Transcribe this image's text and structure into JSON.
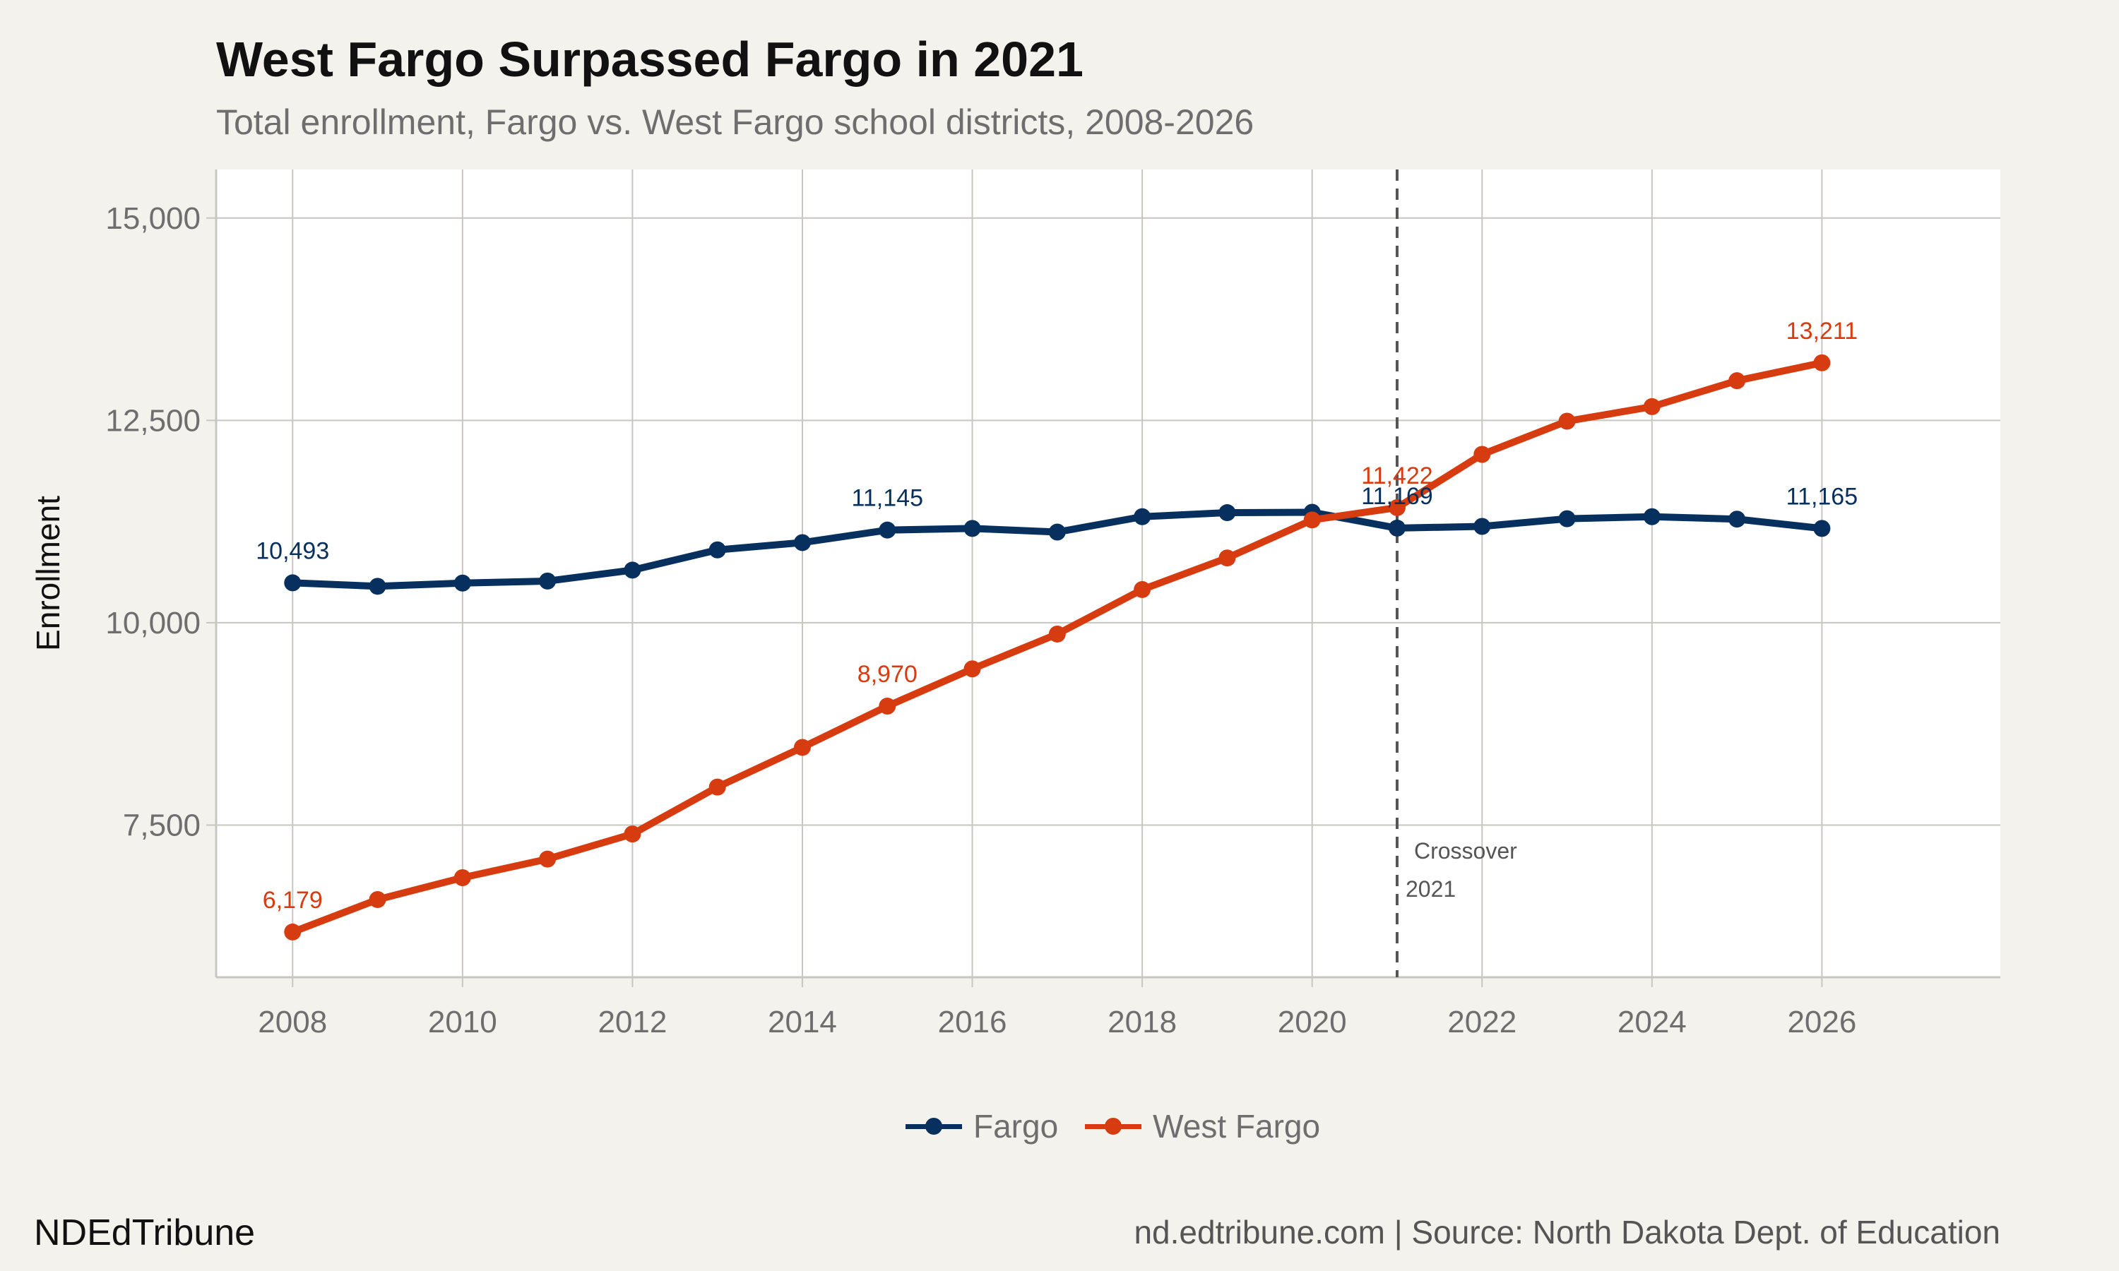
{
  "title": "West Fargo Surpassed Fargo in 2021",
  "subtitle": "Total enrollment, Fargo vs. West Fargo school districts, 2008-2026",
  "brand": "NDEdTribune",
  "caption": "nd.edtribune.com | Source: North Dakota Dept. of Education",
  "colors": {
    "fargo": "#08305e",
    "west_fargo": "#d63c10",
    "background": "#f4f2ed",
    "panel": "#ffffff",
    "grid": "#c8c6c0"
  },
  "chart_data": {
    "type": "line",
    "title": "West Fargo Surpassed Fargo in 2021",
    "subtitle": "Total enrollment, Fargo vs. West Fargo school districts, 2008-2026",
    "xlabel": "",
    "ylabel": "Enrollment",
    "xlim": [
      2007.1,
      2028.1
    ],
    "ylim": [
      5620,
      15600
    ],
    "x_ticks": [
      2008,
      2010,
      2012,
      2014,
      2016,
      2018,
      2020,
      2022,
      2024,
      2026
    ],
    "y_ticks": [
      7500,
      10000,
      12500,
      15000
    ],
    "y_tick_labels": [
      "7,500",
      "10,000",
      "12,500",
      "15,000"
    ],
    "grid": true,
    "legend_position": "bottom",
    "x": [
      2008,
      2009,
      2010,
      2011,
      2012,
      2013,
      2014,
      2015,
      2016,
      2017,
      2018,
      2019,
      2020,
      2021,
      2022,
      2023,
      2024,
      2025,
      2026
    ],
    "series": [
      {
        "name": "Fargo",
        "color": "#08305e",
        "values": [
          10493,
          10450,
          10490,
          10515,
          10650,
          10900,
          10990,
          11145,
          11165,
          11120,
          11310,
          11360,
          11365,
          11169,
          11190,
          11285,
          11310,
          11280,
          11165
        ]
      },
      {
        "name": "West Fargo",
        "color": "#d63c10",
        "values": [
          6179,
          6580,
          6850,
          7080,
          7390,
          7970,
          8460,
          8970,
          9430,
          9860,
          10410,
          10800,
          11270,
          11422,
          12080,
          12490,
          12670,
          12990,
          13211
        ]
      }
    ],
    "data_labels": [
      {
        "series": "Fargo",
        "x": 2008,
        "text": "10,493"
      },
      {
        "series": "Fargo",
        "x": 2015,
        "text": "11,145"
      },
      {
        "series": "Fargo",
        "x": 2021,
        "text": "11,169"
      },
      {
        "series": "Fargo",
        "x": 2026,
        "text": "11,165"
      },
      {
        "series": "West Fargo",
        "x": 2008,
        "text": "6,179"
      },
      {
        "series": "West Fargo",
        "x": 2015,
        "text": "8,970"
      },
      {
        "series": "West Fargo",
        "x": 2021,
        "text": "11,422"
      },
      {
        "series": "West Fargo",
        "x": 2026,
        "text": "13,211"
      }
    ],
    "annotation": {
      "x": 2021,
      "line1": "Crossover",
      "line2": "2021"
    }
  }
}
